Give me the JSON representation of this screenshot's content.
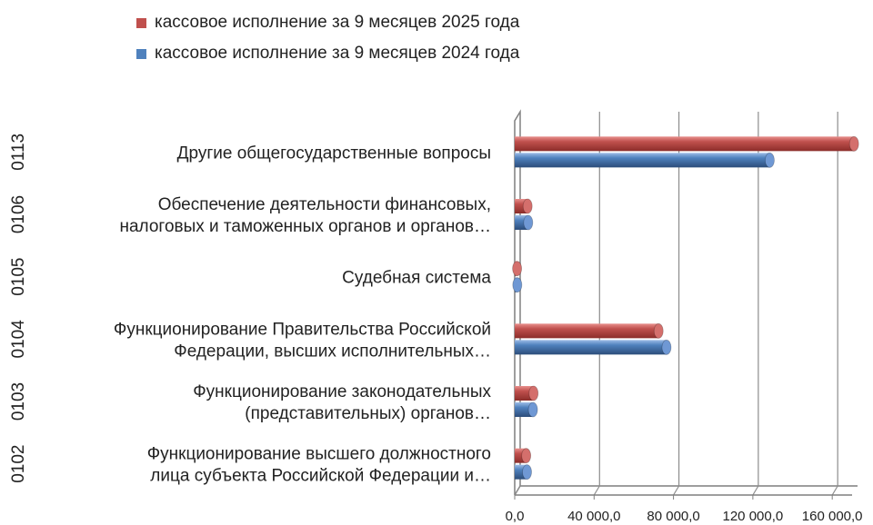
{
  "chart_data": {
    "type": "bar",
    "orientation": "horizontal",
    "legend_position": "top",
    "grid": true,
    "xlim": [
      0,
      170000
    ],
    "x_ticks": [
      0,
      40000,
      80000,
      120000,
      160000
    ],
    "x_tick_labels": [
      "0,0",
      "40 000,0",
      "80 000,0",
      "120 000,0",
      "160 000,0"
    ],
    "categories": [
      {
        "code": "0113",
        "lines": [
          "Другие общегосударственные вопросы"
        ]
      },
      {
        "code": "0106",
        "lines": [
          "Обеспечение деятельности финансовых,",
          "налоговых и таможенных органов и органов…"
        ]
      },
      {
        "code": "0105",
        "lines": [
          "Судебная система"
        ]
      },
      {
        "code": "0104",
        "lines": [
          "Функционирование Правительства Российской",
          "Федерации, высших исполнительных…"
        ]
      },
      {
        "code": "0103",
        "lines": [
          "Функционирование законодательных",
          "(представительных) органов…"
        ]
      },
      {
        "code": "0102",
        "lines": [
          "Функционирование высшего должностного",
          "лица субъекта Российской Федерации и…"
        ]
      }
    ],
    "series": [
      {
        "name": "кассовое исполнение за 9 месяцев 2025 года",
        "color": "#c0504d",
        "values": [
          171000,
          6500,
          1200,
          72500,
          9500,
          5800
        ]
      },
      {
        "name": "кассовое исполнение за 9 месяцев 2024 года",
        "color": "#4f81bd",
        "values": [
          128500,
          6800,
          1300,
          76500,
          9200,
          6200
        ]
      }
    ]
  }
}
